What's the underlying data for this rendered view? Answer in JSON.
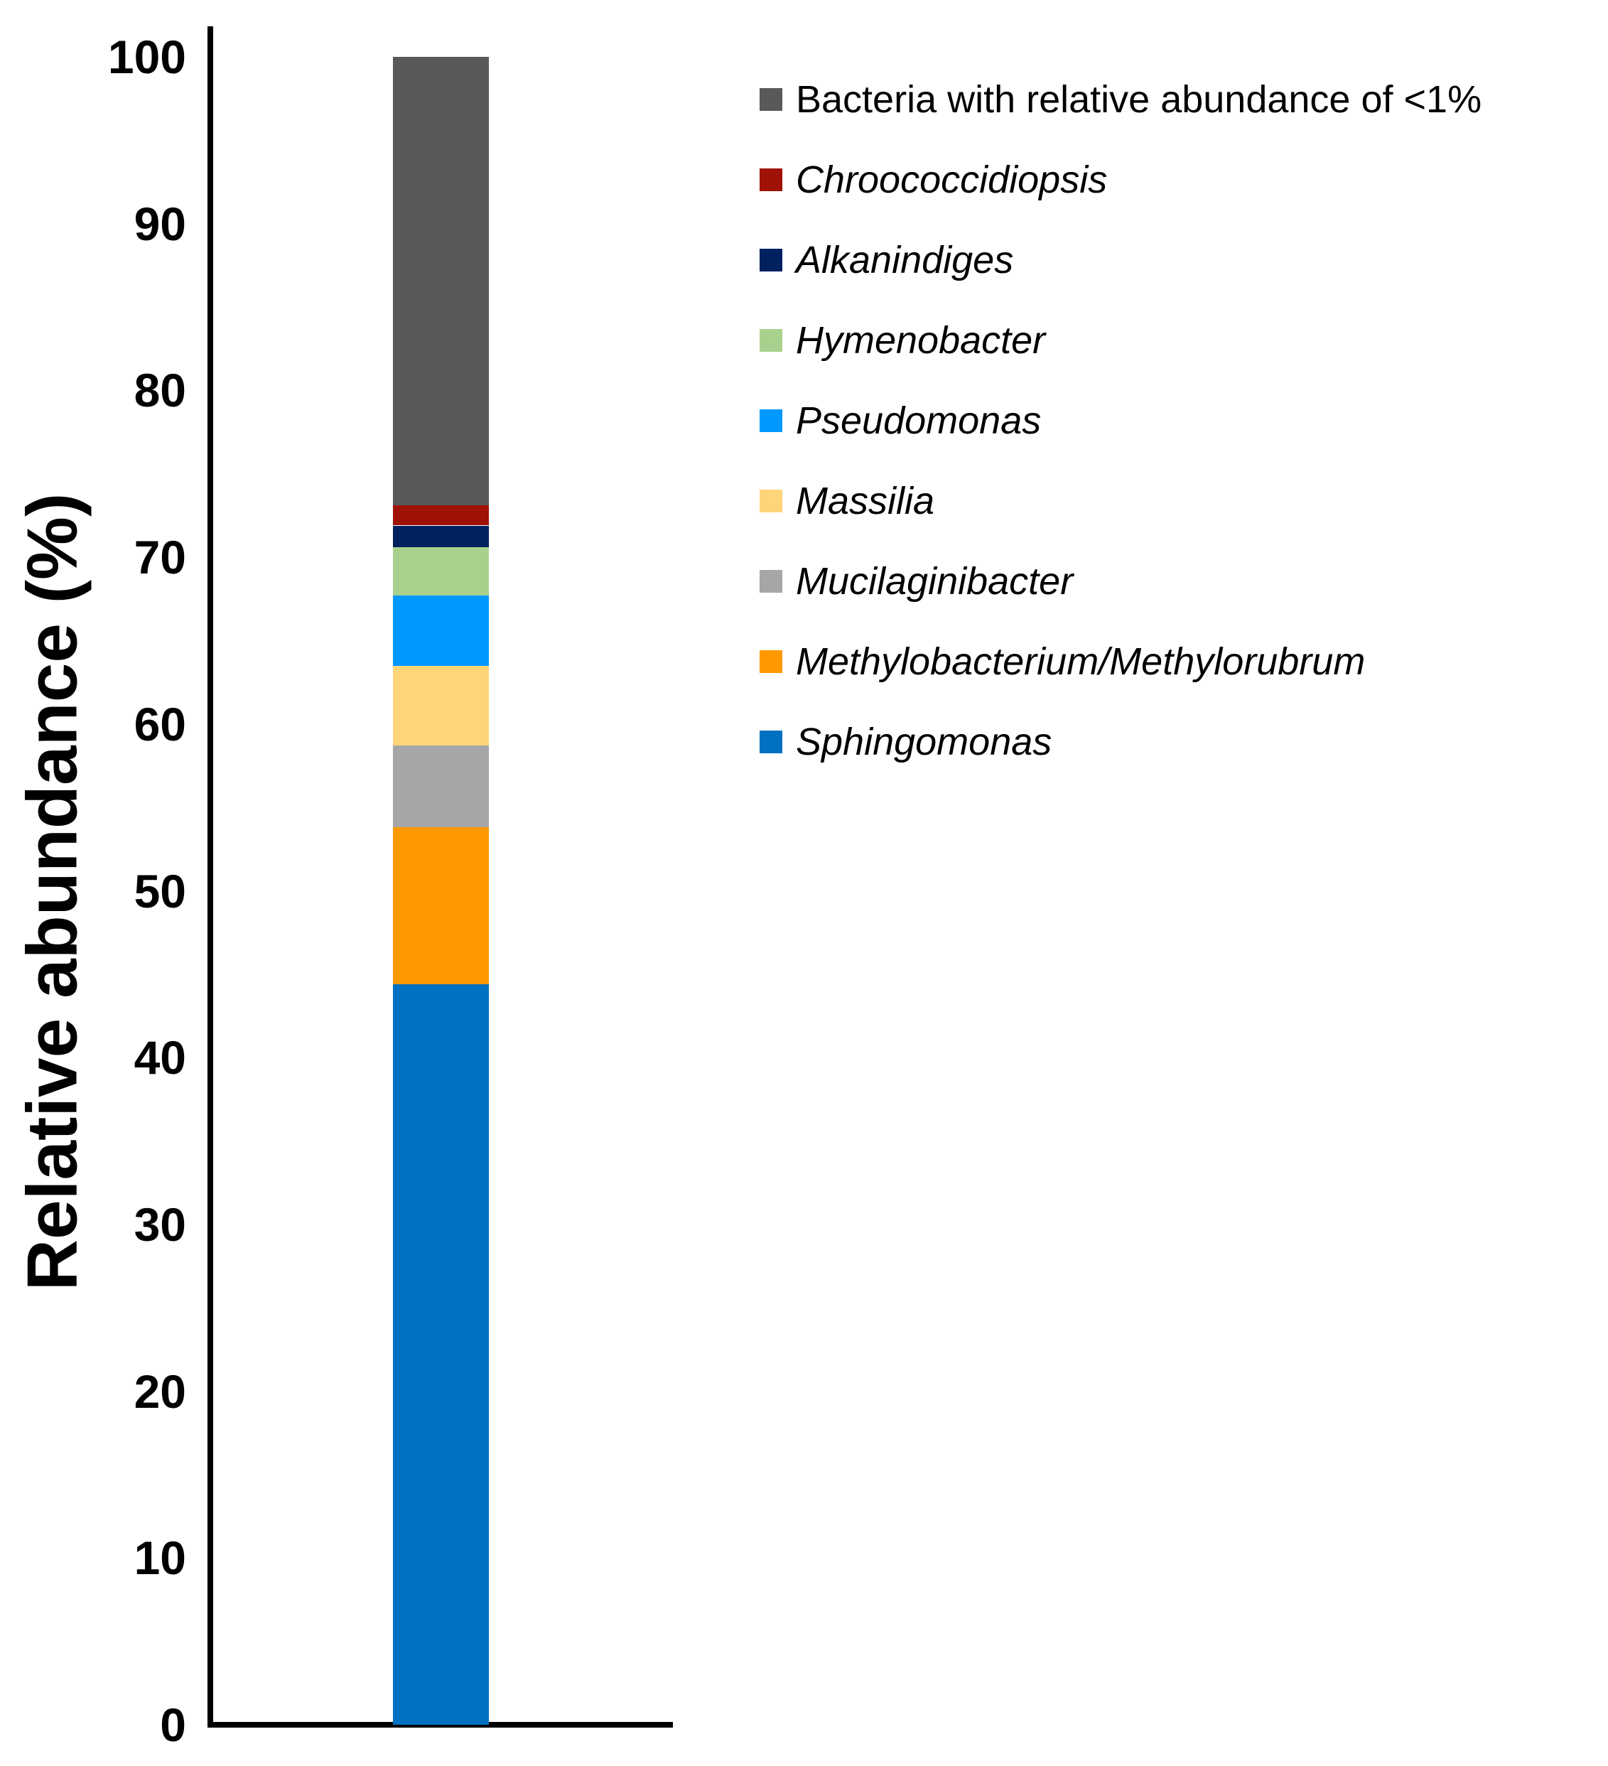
{
  "chart_data": {
    "type": "bar",
    "stacked": true,
    "title": "",
    "xlabel": "",
    "ylabel": "Relative abundance (%)",
    "ylim": [
      0,
      100
    ],
    "yticks": [
      0,
      10,
      20,
      30,
      40,
      50,
      60,
      70,
      80,
      90,
      100
    ],
    "grid": false,
    "legend_position": "right",
    "categories": [
      ""
    ],
    "stack_order": "bottom-to-top",
    "series": [
      {
        "name": "Sphingomonas",
        "color": "#0070C0",
        "values": [
          44.4
        ]
      },
      {
        "name": "Methylobacterium/Methylorubrum",
        "color": "#FF9900",
        "values": [
          9.4
        ]
      },
      {
        "name": "Mucilaginibacter",
        "color": "#A6A6A6",
        "values": [
          4.9
        ]
      },
      {
        "name": "Massilia",
        "color": "#FFD57A",
        "values": [
          4.8
        ]
      },
      {
        "name": "Pseudomonas",
        "color": "#0099FF",
        "values": [
          4.2
        ]
      },
      {
        "name": "Hymenobacter",
        "color": "#A9D18E",
        "values": [
          2.9
        ]
      },
      {
        "name": "Alkanindiges",
        "color": "#002060",
        "values": [
          1.3
        ]
      },
      {
        "name": "Chroococcidiopsis",
        "color": "#A01206",
        "values": [
          1.2
        ]
      },
      {
        "name": "Bacteria with relative abundance of <1%",
        "color": "#595959",
        "values": [
          26.9
        ]
      }
    ]
  },
  "legend": {
    "items": [
      {
        "label": "Bacteria with relative abundance of <1%",
        "color": "#595959",
        "italic": false
      },
      {
        "label": "Chroococcidiopsis",
        "color": "#A01206",
        "italic": true
      },
      {
        "label": "Alkanindiges",
        "color": "#002060",
        "italic": true
      },
      {
        "label": "Hymenobacter",
        "color": "#A9D18E",
        "italic": true
      },
      {
        "label": "Pseudomonas",
        "color": "#0099FF",
        "italic": true
      },
      {
        "label": "Massilia",
        "color": "#FFD57A",
        "italic": true
      },
      {
        "label": "Mucilaginibacter",
        "color": "#A6A6A6",
        "italic": true
      },
      {
        "label": "Methylobacterium/Methylorubrum",
        "color": "#FF9900",
        "italic": true
      },
      {
        "label": "Sphingomonas",
        "color": "#0070C0",
        "italic": true
      }
    ]
  }
}
